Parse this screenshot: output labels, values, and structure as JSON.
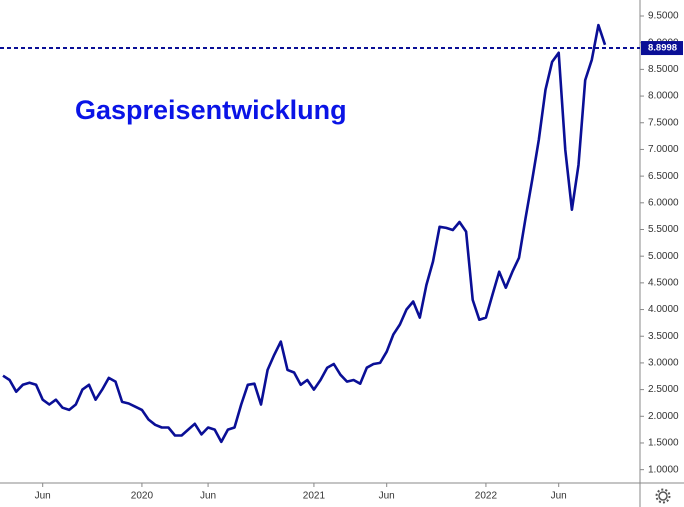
{
  "chart_data": {
    "type": "line",
    "title": "Gaspreisentwicklung",
    "categories": [
      null,
      null,
      null,
      null,
      null,
      null,
      "Jun",
      null,
      null,
      null,
      null,
      null,
      null,
      null,
      null,
      null,
      null,
      null,
      null,
      null,
      null,
      "2020",
      null,
      null,
      null,
      null,
      null,
      null,
      null,
      null,
      null,
      "Jun",
      null,
      null,
      null,
      null,
      null,
      null,
      null,
      null,
      null,
      null,
      null,
      null,
      null,
      null,
      null,
      "2021",
      null,
      null,
      null,
      null,
      null,
      null,
      null,
      null,
      null,
      null,
      "Jun",
      null,
      null,
      null,
      null,
      null,
      null,
      null,
      null,
      null,
      null,
      null,
      null,
      null,
      null,
      "2022",
      null,
      null,
      null,
      null,
      null,
      null,
      null,
      null,
      null,
      null,
      "Jun",
      null,
      null,
      null,
      null,
      null,
      null,
      null
    ],
    "series": [
      {
        "color": "#0a0f96",
        "values": [
          2.76,
          2.68,
          2.46,
          2.59,
          2.63,
          2.59,
          2.31,
          2.22,
          2.31,
          2.16,
          2.12,
          2.22,
          2.5,
          2.59,
          2.31,
          2.5,
          2.72,
          2.65,
          2.27,
          2.24,
          2.18,
          2.12,
          1.94,
          1.84,
          1.79,
          1.79,
          1.64,
          1.64,
          1.75,
          1.86,
          1.66,
          1.79,
          1.75,
          1.52,
          1.75,
          1.79,
          2.22,
          2.59,
          2.61,
          2.22,
          2.87,
          3.15,
          3.4,
          2.87,
          2.82,
          2.59,
          2.68,
          2.5,
          2.68,
          2.91,
          2.98,
          2.78,
          2.65,
          2.68,
          2.61,
          2.91,
          2.98,
          3.0,
          3.21,
          3.53,
          3.72,
          4.0,
          4.15,
          3.85,
          4.46,
          4.9,
          5.55,
          5.53,
          5.49,
          5.64,
          5.46,
          4.18,
          3.81,
          3.85,
          4.28,
          4.71,
          4.41,
          4.71,
          4.97,
          5.72,
          6.43,
          7.18,
          8.12,
          8.64,
          8.81,
          6.99,
          5.87,
          6.71,
          8.3,
          8.68,
          9.33,
          8.96
        ]
      }
    ],
    "ylim": [
      0.75,
      9.8
    ],
    "yticks": [
      {
        "value": 1,
        "label": "1.0000"
      },
      {
        "value": 1.5,
        "label": "1.5000"
      },
      {
        "value": 2,
        "label": "2.0000"
      },
      {
        "value": 2.5,
        "label": "2.5000"
      },
      {
        "value": 3,
        "label": "3.0000"
      },
      {
        "value": 3.5,
        "label": "3.5000"
      },
      {
        "value": 4,
        "label": "4.0000"
      },
      {
        "value": 4.5,
        "label": "4.5000"
      },
      {
        "value": 5,
        "label": "5.0000"
      },
      {
        "value": 5.5,
        "label": "5.5000"
      },
      {
        "value": 6,
        "label": "6.0000"
      },
      {
        "value": 6.5,
        "label": "6.5000"
      },
      {
        "value": 7,
        "label": "7.0000"
      },
      {
        "value": 7.5,
        "label": "7.5000"
      },
      {
        "value": 8,
        "label": "8.0000"
      },
      {
        "value": 8.5,
        "label": "8.5000"
      },
      {
        "value": 9,
        "label": "9.0000"
      },
      {
        "value": 9.5,
        "label": "9.5000"
      }
    ],
    "reference_line": 8.8998,
    "reference_color": "#0a0f96",
    "grid": false
  }
}
